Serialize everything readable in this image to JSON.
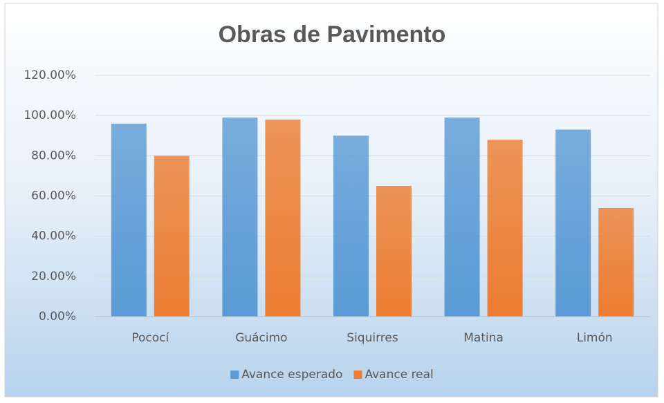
{
  "chart_data": {
    "type": "bar",
    "title": "Obras de Pavimento",
    "categories": [
      "Pococí",
      "Guácimo",
      "Siquirres",
      "Matina",
      "Limón"
    ],
    "series": [
      {
        "name": "Avance esperado",
        "color": "#5b9bd5",
        "values": [
          96,
          99,
          90,
          99,
          93
        ]
      },
      {
        "name": "Avance real",
        "color": "#ed7d31",
        "values": [
          80,
          98,
          65,
          88,
          54
        ]
      }
    ],
    "ylim": [
      0,
      120
    ],
    "yticks": [
      {
        "value": 0,
        "label": "0.00%"
      },
      {
        "value": 20,
        "label": "20.00%"
      },
      {
        "value": 40,
        "label": "40.00%"
      },
      {
        "value": 60,
        "label": "60.00%"
      },
      {
        "value": 80,
        "label": "80.00%"
      },
      {
        "value": 100,
        "label": "100.00%"
      },
      {
        "value": 120,
        "label": "120.00%"
      }
    ],
    "grid": true,
    "legend": "bottom"
  }
}
